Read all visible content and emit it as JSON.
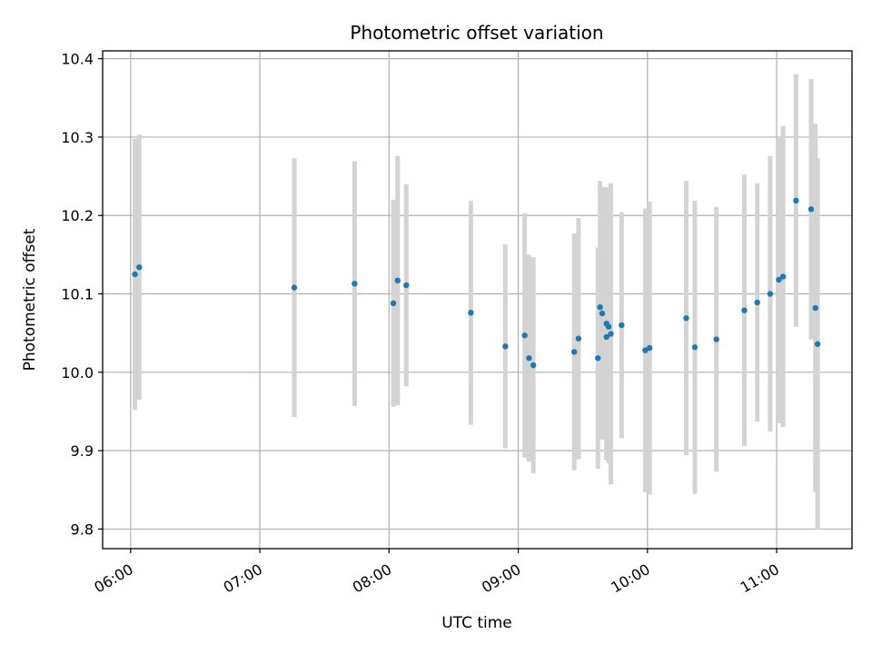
{
  "chart_data": {
    "type": "scatter",
    "title": "Photometric offset variation",
    "xlabel": "UTC time",
    "ylabel": "Photometric offset",
    "x_ticks": [
      "06:00",
      "07:00",
      "08:00",
      "09:00",
      "10:00",
      "11:00"
    ],
    "y_ticks": [
      "9.8",
      "9.9",
      "10.0",
      "10.1",
      "10.2",
      "10.3",
      "10.4"
    ],
    "xlim": [
      "05:47",
      "11:35"
    ],
    "ylim": [
      9.775,
      10.41
    ],
    "grid": true,
    "point_color": "#1f77b4",
    "errorbar_color": "#d3d3d3",
    "points": [
      {
        "t": "06:02",
        "y": 10.125,
        "err": 0.173
      },
      {
        "t": "06:04",
        "y": 10.134,
        "err": 0.169
      },
      {
        "t": "07:16",
        "y": 10.108,
        "err": 0.165
      },
      {
        "t": "07:44",
        "y": 10.113,
        "err": 0.156
      },
      {
        "t": "08:02",
        "y": 10.088,
        "err": 0.132
      },
      {
        "t": "08:04",
        "y": 10.117,
        "err": 0.159
      },
      {
        "t": "08:08",
        "y": 10.111,
        "err": 0.129
      },
      {
        "t": "08:38",
        "y": 10.076,
        "err": 0.143
      },
      {
        "t": "08:54",
        "y": 10.033,
        "err": 0.13
      },
      {
        "t": "09:03",
        "y": 10.047,
        "err": 0.156
      },
      {
        "t": "09:05",
        "y": 10.018,
        "err": 0.132
      },
      {
        "t": "09:07",
        "y": 10.009,
        "err": 0.138
      },
      {
        "t": "09:26",
        "y": 10.026,
        "err": 0.151
      },
      {
        "t": "09:28",
        "y": 10.043,
        "err": 0.154
      },
      {
        "t": "09:37",
        "y": 10.018,
        "err": 0.141
      },
      {
        "t": "09:38",
        "y": 10.083,
        "err": 0.161
      },
      {
        "t": "09:39",
        "y": 10.075,
        "err": 0.161
      },
      {
        "t": "09:41",
        "y": 10.062,
        "err": 0.174
      },
      {
        "t": "09:41",
        "y": 10.045,
        "err": 0.157
      },
      {
        "t": "09:42",
        "y": 10.058,
        "err": 0.174
      },
      {
        "t": "09:43",
        "y": 10.049,
        "err": 0.192
      },
      {
        "t": "09:48",
        "y": 10.06,
        "err": 0.144
      },
      {
        "t": "09:59",
        "y": 10.028,
        "err": 0.181
      },
      {
        "t": "10:01",
        "y": 10.031,
        "err": 0.187
      },
      {
        "t": "10:18",
        "y": 10.069,
        "err": 0.175
      },
      {
        "t": "10:22",
        "y": 10.032,
        "err": 0.187
      },
      {
        "t": "10:32",
        "y": 10.042,
        "err": 0.169
      },
      {
        "t": "10:45",
        "y": 10.079,
        "err": 0.173
      },
      {
        "t": "10:51",
        "y": 10.089,
        "err": 0.152
      },
      {
        "t": "10:57",
        "y": 10.1,
        "err": 0.176
      },
      {
        "t": "11:01",
        "y": 10.118,
        "err": 0.183
      },
      {
        "t": "11:03",
        "y": 10.122,
        "err": 0.192
      },
      {
        "t": "11:09",
        "y": 10.219,
        "err": 0.161
      },
      {
        "t": "11:16",
        "y": 10.208,
        "err": 0.166
      },
      {
        "t": "11:18",
        "y": 10.082,
        "err": 0.235
      },
      {
        "t": "11:19",
        "y": 10.036,
        "err": 0.237
      }
    ]
  }
}
